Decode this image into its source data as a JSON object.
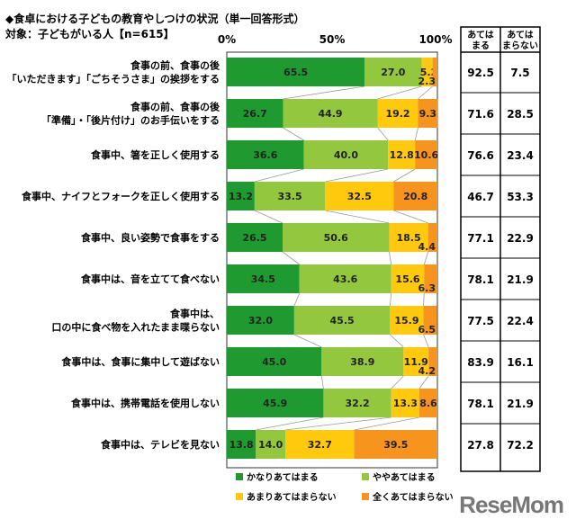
{
  "title": "◆食卓における子どもの教育やしつけの状況（単一回答形式）",
  "subtitle": "対象：子どもがいる人【n=615】",
  "brand": "ReseMom",
  "chart_data": {
    "type": "bar",
    "orientation": "horizontal-stacked-100",
    "x_ticks": [
      "0%",
      "50%",
      "100%"
    ],
    "xlim": [
      0,
      100
    ],
    "categories": [
      "食事の前、食事の後\n「いただきます」「ごちそうさま」の挨拶をする",
      "食事の前、食事の後\n「準備」・「後片付け」のお手伝いをする",
      "食事中、箸を正しく使用する",
      "食事中、ナイフとフォークを正しく使用する",
      "食事中、良い姿勢で食事をする",
      "食事中は、音を立てて食べない",
      "食事中は、\n口の中に食べ物を入れたまま喋らない",
      "食事中は、食事に集中して遊ばない",
      "食事中は、携帯電話を使用しない",
      "食事中は、テレビを見ない"
    ],
    "series": [
      {
        "name": "かなりあてはまる",
        "color": "#1f9a30",
        "values": [
          65.5,
          26.7,
          36.6,
          13.2,
          26.5,
          34.5,
          32.0,
          45.0,
          45.9,
          13.8
        ]
      },
      {
        "name": "ややあてはまる",
        "color": "#93c83e",
        "values": [
          27.0,
          44.9,
          40.0,
          33.5,
          50.6,
          43.6,
          45.5,
          38.9,
          32.2,
          14.0
        ]
      },
      {
        "name": "あまりあてはまらない",
        "color": "#ffc90e",
        "values": [
          5.2,
          19.2,
          12.8,
          32.5,
          18.5,
          15.6,
          15.9,
          11.9,
          13.3,
          32.7
        ]
      },
      {
        "name": "全くあてはまらない",
        "color": "#f7941d",
        "values": [
          2.3,
          9.3,
          10.6,
          20.8,
          4.4,
          6.3,
          6.5,
          4.2,
          8.6,
          39.5
        ]
      }
    ],
    "table": {
      "headers": [
        "あては\nまる",
        "あては\nまらない"
      ],
      "rows": [
        [
          "92.5",
          "7.5"
        ],
        [
          "71.6",
          "28.5"
        ],
        [
          "76.6",
          "23.4"
        ],
        [
          "46.7",
          "53.3"
        ],
        [
          "77.1",
          "22.9"
        ],
        [
          "78.1",
          "21.9"
        ],
        [
          "77.5",
          "22.4"
        ],
        [
          "83.9",
          "16.1"
        ],
        [
          "78.1",
          "21.9"
        ],
        [
          "27.8",
          "72.2"
        ]
      ]
    }
  }
}
